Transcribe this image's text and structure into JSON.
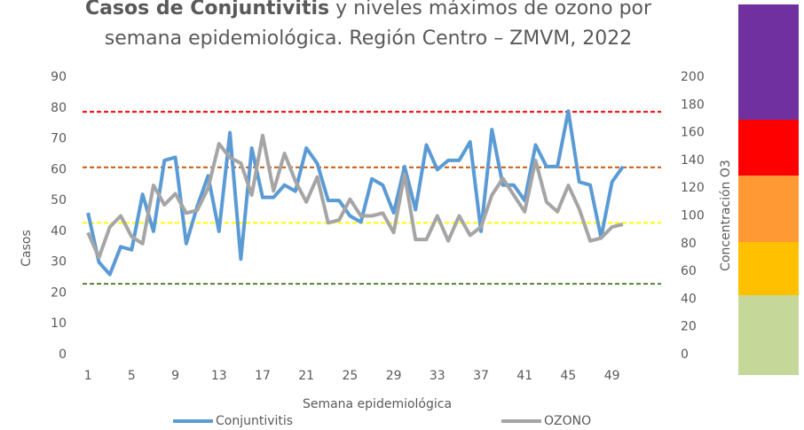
{
  "chart_data": {
    "type": "line",
    "title": [
      "Casos de Conjuntivitis",
      "y niveles máximos de ozono por",
      "semana epidemiológica. Región Centro – ZMVM, 2022"
    ],
    "xlabel": "Semana epidemiológica",
    "ylabel": "Casos",
    "y2label": "Concentración O3",
    "x": [
      1,
      2,
      3,
      4,
      5,
      6,
      7,
      8,
      9,
      10,
      11,
      12,
      13,
      14,
      15,
      16,
      17,
      18,
      19,
      20,
      21,
      22,
      23,
      24,
      25,
      26,
      27,
      28,
      29,
      30,
      31,
      32,
      33,
      34,
      35,
      36,
      37,
      38,
      39,
      40,
      41,
      42,
      43,
      44,
      45,
      46,
      47,
      48,
      49,
      50
    ],
    "xlim": [
      0.5,
      53.5
    ],
    "xticks": [
      1,
      5,
      9,
      13,
      17,
      21,
      25,
      29,
      33,
      37,
      41,
      45,
      49
    ],
    "ylim": [
      0,
      90
    ],
    "yticks": [
      0,
      10,
      20,
      30,
      40,
      50,
      60,
      70,
      80,
      90
    ],
    "y2lim": [
      0,
      200
    ],
    "y2ticks": [
      0,
      20,
      40,
      60,
      80,
      100,
      120,
      140,
      160,
      180,
      200
    ],
    "series": [
      {
        "name": "Conjuntivitis",
        "color": "#5b9bd5",
        "values": [
          46,
          30,
          26,
          35,
          34,
          52,
          40,
          63,
          64,
          36,
          48,
          58,
          40,
          72,
          31,
          67,
          51,
          51,
          55,
          53,
          67,
          62,
          50,
          50,
          45,
          43,
          57,
          55,
          46,
          61,
          47,
          68,
          60,
          63,
          63,
          69,
          40,
          73,
          55,
          55,
          50,
          68,
          61,
          61,
          79,
          56,
          55,
          38,
          56,
          61
        ]
      },
      {
        "name": "OZONO",
        "color": "#a5a5a5",
        "axis": "y2",
        "values": [
          88,
          70,
          92,
          100,
          85,
          80,
          122,
          108,
          116,
          102,
          104,
          120,
          152,
          142,
          138,
          115,
          158,
          118,
          145,
          125,
          110,
          128,
          95,
          97,
          112,
          100,
          100,
          102,
          88,
          130,
          83,
          83,
          100,
          82,
          100,
          86,
          92,
          115,
          127,
          115,
          103,
          140,
          110,
          103,
          122,
          105,
          82,
          84,
          92,
          94
        ]
      }
    ],
    "reference_lines": [
      {
        "value": 175,
        "color": "#ff0000",
        "axis": "y2"
      },
      {
        "value": 135,
        "color": "#c55a11",
        "axis": "y2"
      },
      {
        "value": 95,
        "color": "#ffff00",
        "axis": "y2"
      },
      {
        "value": 51,
        "color": "#548235",
        "axis": "y2"
      }
    ]
  }
}
